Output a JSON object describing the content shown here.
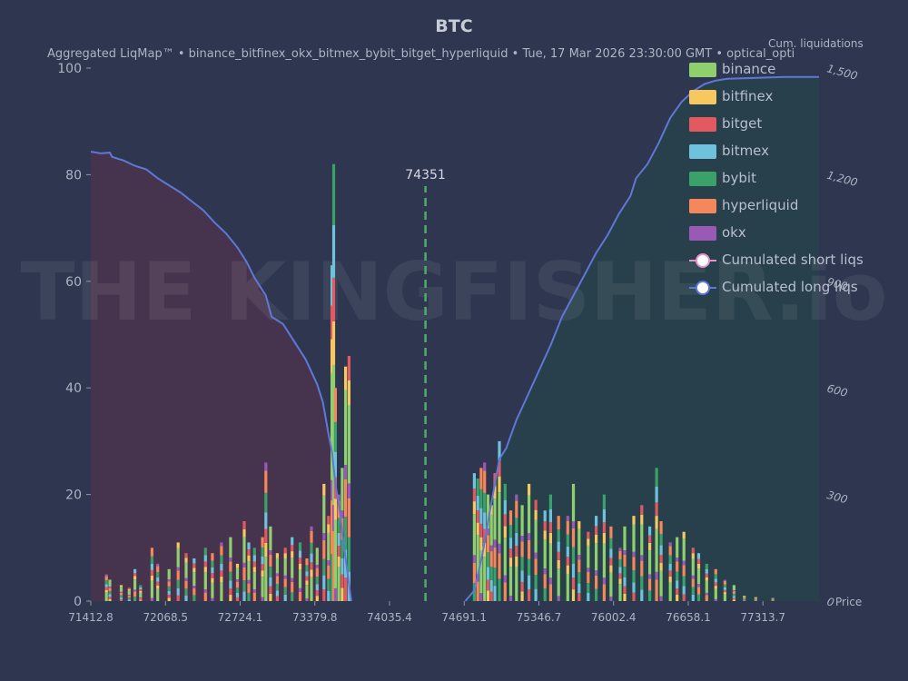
{
  "chart_title": "BTC",
  "subtitle": "Aggregated LiqMap™  •  binance_bitfinex_okx_bitmex_bybit_bitget_hyperliquid  •  Tue, 17 Mar 2026 23:30:00 GMT  •  optical_opti",
  "watermark": "THE KINGFISHER.io",
  "colors": {
    "background": "#2e3650",
    "cum_line": "#5f78d6",
    "short_fill": "#4a344d",
    "long_fill": "#27414a",
    "current_price_line": "#4caf6a"
  },
  "chart_data": {
    "type": "bar",
    "x_label": "Price",
    "x_ticks": [
      "71412.8",
      "72068.5",
      "72724.1",
      "73379.8",
      "74035.4",
      "74691.1",
      "75346.7",
      "76002.4",
      "76658.1",
      "77313.7"
    ],
    "xlim": [
      71412.8,
      77806
    ],
    "y_ticks": [
      "0",
      "20",
      "40",
      "60",
      "80",
      "100"
    ],
    "ylim": [
      0,
      100
    ],
    "y2_label": "Cum. liquidations",
    "y2_ticks": [
      "0",
      "300",
      "600",
      "900",
      "1,200",
      "1,500"
    ],
    "y2lim": [
      0,
      1500
    ],
    "current_price": 74351,
    "current_price_label": "74351",
    "series_names": [
      "binance",
      "bitfinex",
      "bitget",
      "bitmex",
      "bybit",
      "hyperliquid",
      "okx"
    ],
    "series_colors": [
      "#8fcf6e",
      "#f6c85f",
      "#e2595f",
      "#6fc2dc",
      "#3aa169",
      "#f5875a",
      "#9b59b6"
    ],
    "bars": [
      [
        71550,
        5
      ],
      [
        71580,
        4
      ],
      [
        71680,
        3
      ],
      [
        71750,
        2.5
      ],
      [
        71800,
        6
      ],
      [
        71850,
        3
      ],
      [
        71950,
        10
      ],
      [
        72000,
        7
      ],
      [
        72100,
        6
      ],
      [
        72180,
        11
      ],
      [
        72250,
        9
      ],
      [
        72320,
        8
      ],
      [
        72420,
        10
      ],
      [
        72480,
        9
      ],
      [
        72560,
        11
      ],
      [
        72640,
        12
      ],
      [
        72700,
        7
      ],
      [
        72760,
        15
      ],
      [
        72800,
        11
      ],
      [
        72850,
        10
      ],
      [
        72920,
        12
      ],
      [
        72950,
        26
      ],
      [
        72990,
        14
      ],
      [
        73050,
        9
      ],
      [
        73120,
        10
      ],
      [
        73180,
        12
      ],
      [
        73250,
        11
      ],
      [
        73310,
        8
      ],
      [
        73350,
        14
      ],
      [
        73400,
        10
      ],
      [
        73460,
        22
      ],
      [
        73500,
        16
      ],
      [
        73530,
        63
      ],
      [
        73545,
        82
      ],
      [
        73560,
        40
      ],
      [
        73590,
        20
      ],
      [
        73620,
        25
      ],
      [
        73650,
        44
      ],
      [
        73680,
        46
      ],
      [
        74780,
        24
      ],
      [
        74810,
        23
      ],
      [
        74840,
        25
      ],
      [
        74870,
        26
      ],
      [
        74900,
        20
      ],
      [
        74930,
        18
      ],
      [
        74960,
        24
      ],
      [
        75000,
        30
      ],
      [
        75050,
        22
      ],
      [
        75100,
        17
      ],
      [
        75150,
        20
      ],
      [
        75200,
        18
      ],
      [
        75260,
        22
      ],
      [
        75320,
        19
      ],
      [
        75400,
        17
      ],
      [
        75450,
        20
      ],
      [
        75520,
        16
      ],
      [
        75600,
        16
      ],
      [
        75650,
        22
      ],
      [
        75700,
        15
      ],
      [
        75780,
        13
      ],
      [
        75850,
        16
      ],
      [
        75920,
        20
      ],
      [
        75980,
        14
      ],
      [
        76060,
        10
      ],
      [
        76100,
        14
      ],
      [
        76180,
        16
      ],
      [
        76250,
        18
      ],
      [
        76320,
        14
      ],
      [
        76380,
        25
      ],
      [
        76420,
        15
      ],
      [
        76500,
        11
      ],
      [
        76560,
        12
      ],
      [
        76620,
        13
      ],
      [
        76700,
        10
      ],
      [
        76750,
        9
      ],
      [
        76820,
        7
      ],
      [
        76900,
        6
      ],
      [
        76980,
        4
      ],
      [
        77060,
        3
      ],
      [
        77150,
        1
      ],
      [
        77250,
        0.8
      ],
      [
        77400,
        0.6
      ]
    ],
    "cum_short": [
      [
        71412.8,
        1265
      ],
      [
        71500,
        1260
      ],
      [
        71580,
        1262
      ],
      [
        71600,
        1250
      ],
      [
        71700,
        1240
      ],
      [
        71800,
        1225
      ],
      [
        71900,
        1215
      ],
      [
        72000,
        1190
      ],
      [
        72100,
        1170
      ],
      [
        72200,
        1150
      ],
      [
        72300,
        1125
      ],
      [
        72400,
        1100
      ],
      [
        72500,
        1065
      ],
      [
        72600,
        1035
      ],
      [
        72700,
        995
      ],
      [
        72780,
        955
      ],
      [
        72850,
        910
      ],
      [
        72950,
        860
      ],
      [
        73000,
        800
      ],
      [
        73100,
        780
      ],
      [
        73200,
        730
      ],
      [
        73300,
        680
      ],
      [
        73400,
        610
      ],
      [
        73450,
        560
      ],
      [
        73500,
        470
      ],
      [
        73530,
        420
      ],
      [
        73560,
        330
      ],
      [
        73600,
        250
      ],
      [
        73650,
        120
      ],
      [
        73700,
        0
      ]
    ],
    "cum_long": [
      [
        74700,
        0
      ],
      [
        74780,
        30
      ],
      [
        74850,
        130
      ],
      [
        74920,
        260
      ],
      [
        75000,
        400
      ],
      [
        75060,
        430
      ],
      [
        75150,
        510
      ],
      [
        75250,
        580
      ],
      [
        75350,
        650
      ],
      [
        75450,
        720
      ],
      [
        75550,
        800
      ],
      [
        75650,
        860
      ],
      [
        75750,
        920
      ],
      [
        75850,
        980
      ],
      [
        75950,
        1030
      ],
      [
        76050,
        1090
      ],
      [
        76150,
        1140
      ],
      [
        76200,
        1190
      ],
      [
        76300,
        1230
      ],
      [
        76400,
        1290
      ],
      [
        76500,
        1360
      ],
      [
        76600,
        1405
      ],
      [
        76700,
        1435
      ],
      [
        76800,
        1455
      ],
      [
        76900,
        1465
      ],
      [
        77000,
        1470
      ],
      [
        77200,
        1472
      ],
      [
        77500,
        1475
      ],
      [
        77806,
        1475
      ]
    ]
  },
  "legend": {
    "items": [
      {
        "label": "binance",
        "color": "#8fcf6e"
      },
      {
        "label": "bitfinex",
        "color": "#f6c85f"
      },
      {
        "label": "bitget",
        "color": "#e2595f"
      },
      {
        "label": "bitmex",
        "color": "#6fc2dc"
      },
      {
        "label": "bybit",
        "color": "#3aa169"
      },
      {
        "label": "hyperliquid",
        "color": "#f5875a"
      },
      {
        "label": "okx",
        "color": "#9b59b6"
      }
    ],
    "short_line_label": "Cumulated short liqs",
    "long_line_label": "Cumulated long liqs",
    "short_line_color": "#e890c8",
    "long_line_color": "#5f78d6"
  }
}
